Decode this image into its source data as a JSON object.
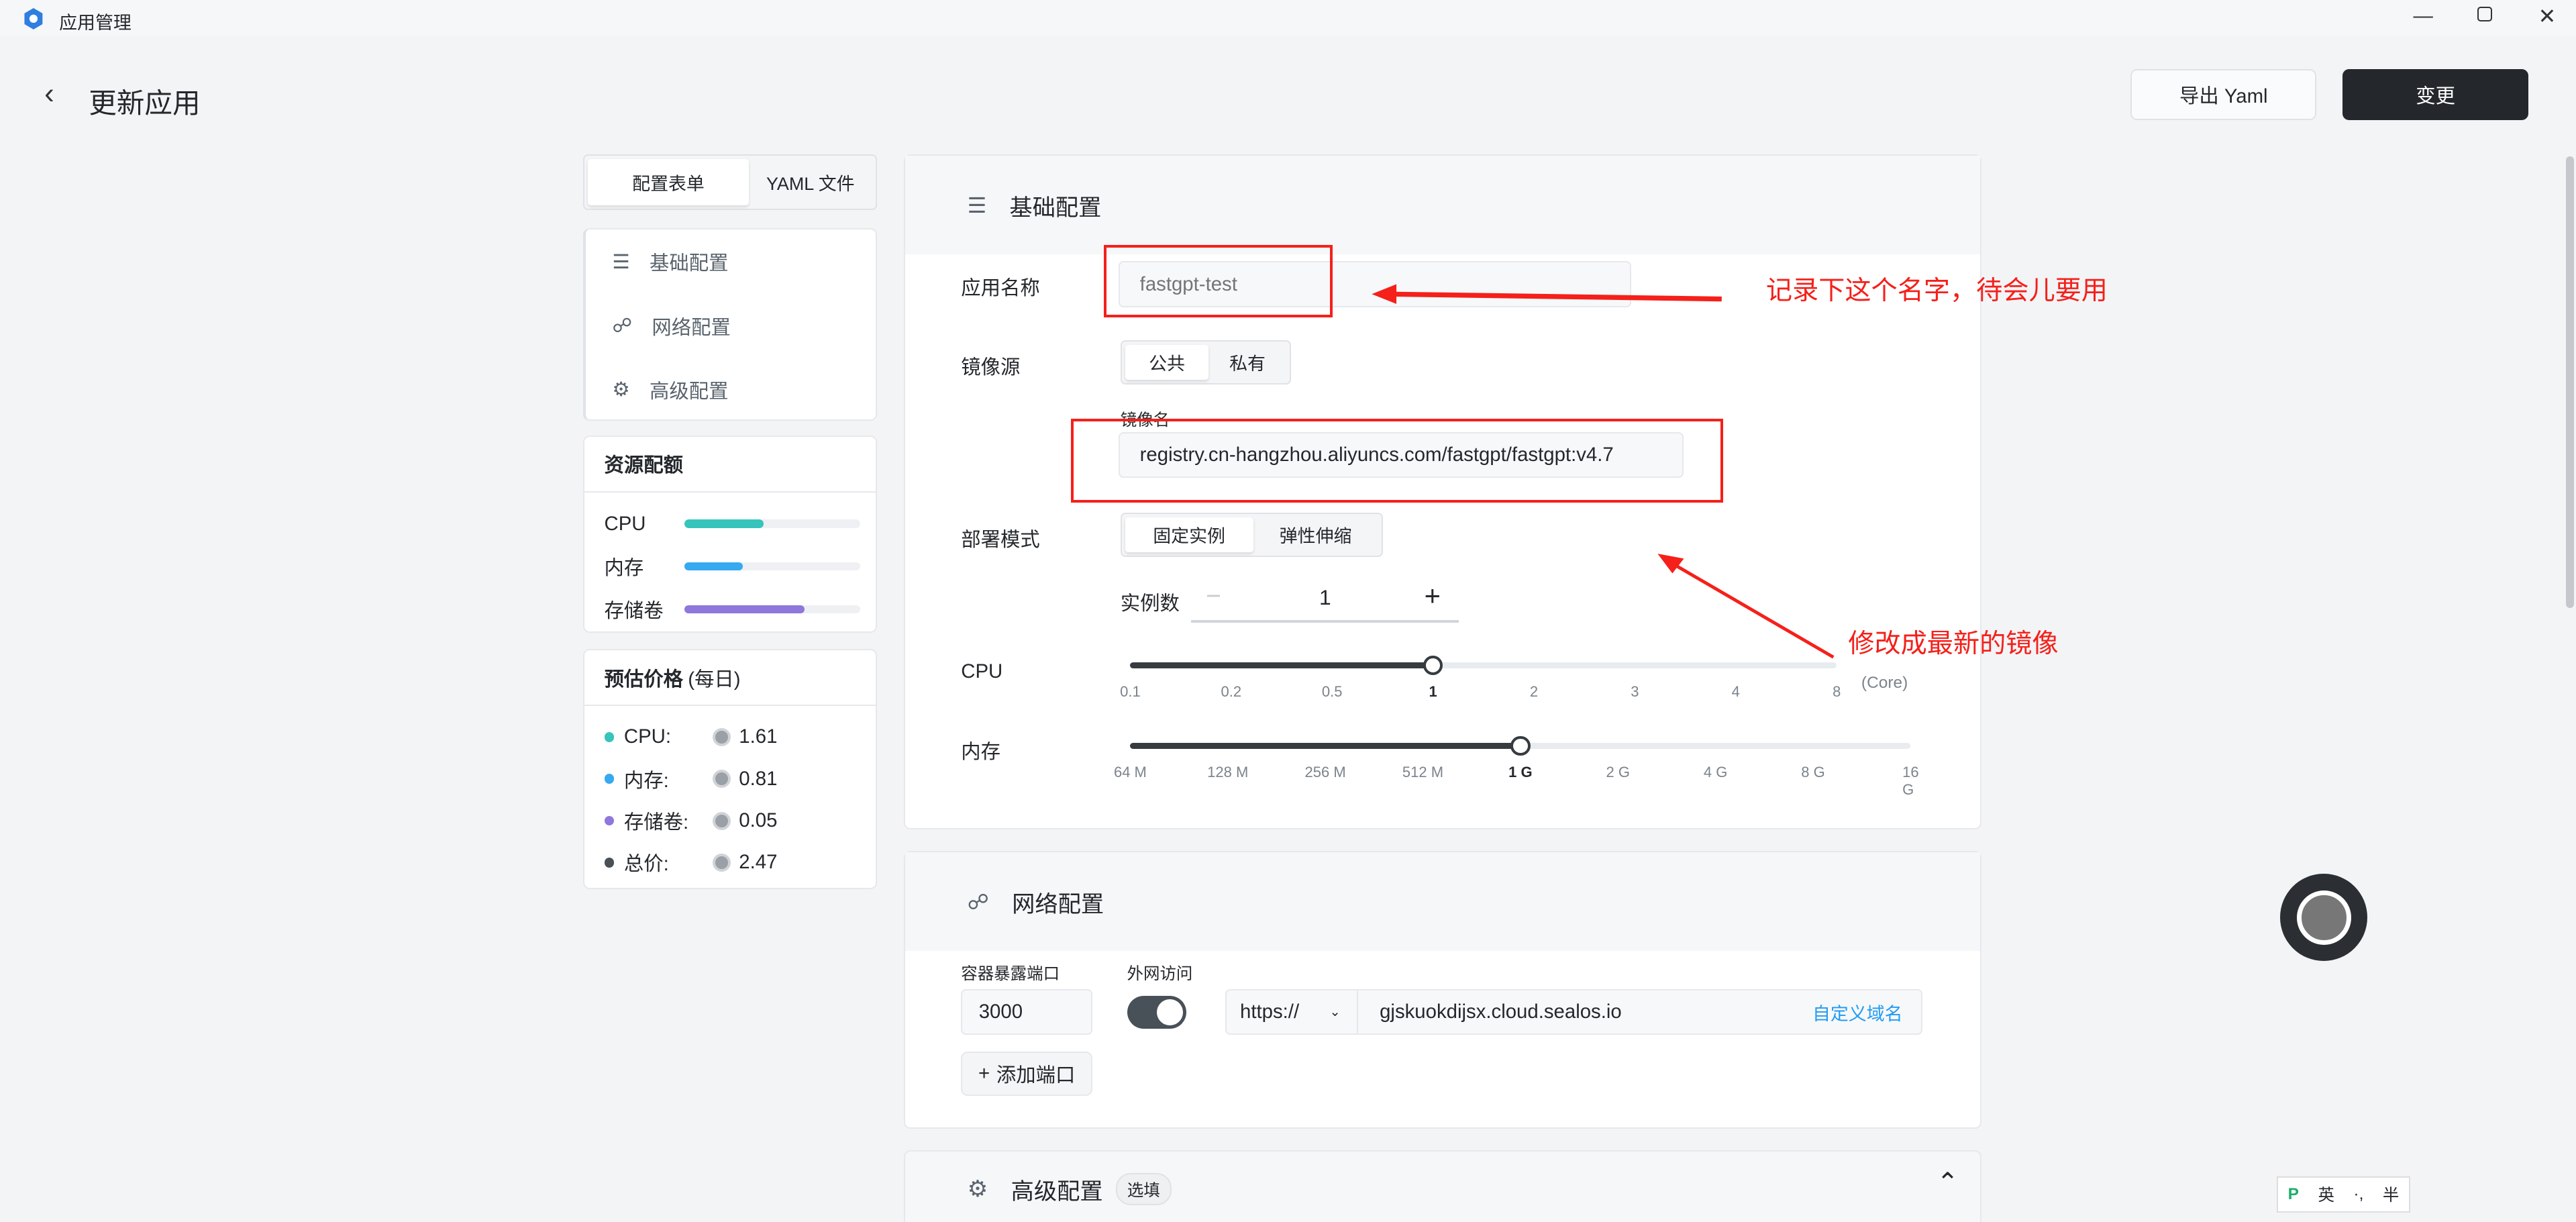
{
  "window": {
    "title": "应用管理",
    "icon": "sealos-logo-icon",
    "controls": [
      "minimize-icon",
      "restore-icon",
      "close-icon"
    ]
  },
  "header": {
    "title": "更新应用",
    "export_label": "导出 Yaml",
    "apply_label": "变更"
  },
  "sidebar": {
    "tabs": [
      {
        "label": "配置表单",
        "active": true
      },
      {
        "label": "YAML 文件",
        "active": false
      }
    ],
    "nav": [
      {
        "label": "基础配置",
        "icon": "document-icon"
      },
      {
        "label": "网络配置",
        "icon": "network-icon"
      },
      {
        "label": "高级配置",
        "icon": "gear-icon"
      }
    ],
    "resources": {
      "title": "资源配额",
      "items": [
        {
          "label": "CPU",
          "percent": 45,
          "color": "#36c4bb"
        },
        {
          "label": "内存",
          "percent": 33,
          "color": "#36a9f0"
        },
        {
          "label": "存储卷",
          "percent": 68,
          "color": "#8f77db"
        }
      ]
    },
    "price": {
      "title": "预估价格",
      "unit": "(每日)",
      "items": [
        {
          "label": "CPU:",
          "value": "1.61",
          "color": "#36c4bb"
        },
        {
          "label": "内存:",
          "value": "0.81",
          "color": "#36a9f0"
        },
        {
          "label": "存储卷:",
          "value": "0.05",
          "color": "#8f77db"
        },
        {
          "label": "总价:",
          "value": "2.47",
          "color": "#485058"
        }
      ]
    }
  },
  "basic": {
    "title": "基础配置",
    "app_name_label": "应用名称",
    "app_name_placeholder": "fastgpt-test",
    "image_source_label": "镜像源",
    "image_source_options": [
      "公共",
      "私有"
    ],
    "image_source_selected": "公共",
    "image_name_label": "镜像名",
    "image_name_value": "registry.cn-hangzhou.aliyuncs.com/fastgpt/fastgpt:v4.7",
    "deploy_mode_label": "部署模式",
    "deploy_mode_options": [
      "固定实例",
      "弹性伸缩"
    ],
    "deploy_mode_selected": "固定实例",
    "replicas_label": "实例数",
    "replicas_value": "1",
    "cpu_label": "CPU",
    "cpu_ticks": [
      "0.1",
      "0.2",
      "0.5",
      "1",
      "2",
      "3",
      "4",
      "8"
    ],
    "cpu_selected": "1",
    "cpu_unit": "(Core)",
    "mem_label": "内存",
    "mem_ticks": [
      "64 M",
      "128 M",
      "256 M",
      "512 M",
      "1 G",
      "2 G",
      "4 G",
      "8 G",
      "16 G"
    ],
    "mem_selected": "1 G"
  },
  "network": {
    "title": "网络配置",
    "port_label": "容器暴露端口",
    "port_value": "3000",
    "public_label": "外网访问",
    "public_enabled": true,
    "protocol": "https://",
    "domain": "gjskuokdijsx.cloud.sealos.io",
    "custom_domain_label": "自定义域名",
    "add_port_label": "添加端口"
  },
  "advanced": {
    "title": "高级配置",
    "badge": "选填"
  },
  "annotations": {
    "name_note": "记录下这个名字，待会儿要用",
    "image_note": "修改成最新的镜像",
    "color": "#f5201a"
  },
  "ime": {
    "label1": "英",
    "label2": "·,",
    "label3": "半"
  }
}
